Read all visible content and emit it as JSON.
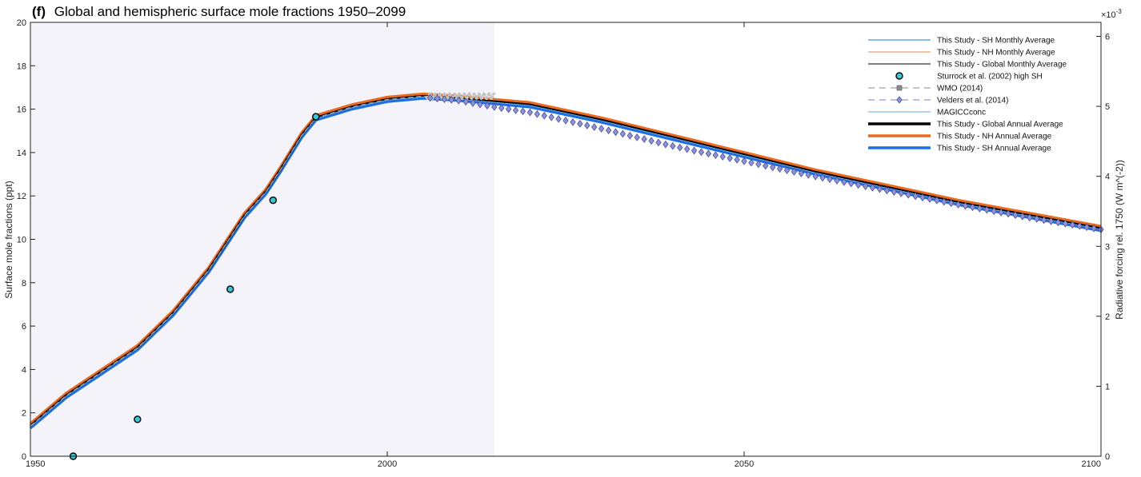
{
  "chart_data": {
    "type": "line",
    "title": "Global and hemispheric surface mole fractions 1950–2099",
    "panel_label": "(f)",
    "xlabel": "",
    "ylabel": "Surface mole fractions (ppt)",
    "ylabel_right": "Radiative forcing rel. 1750 (W m^(-2))",
    "right_axis_multiplier": "×10",
    "right_axis_exponent": "-3",
    "xlim": [
      1950,
      2100
    ],
    "ylim": [
      0,
      20
    ],
    "ylim_right": [
      0,
      0.0062
    ],
    "x_ticks": [
      "1950",
      "2000",
      "2050",
      "2100"
    ],
    "y_ticks": [
      "0",
      "2",
      "4",
      "6",
      "8",
      "10",
      "12",
      "14",
      "16",
      "18",
      "20"
    ],
    "y_right_ticks": [
      "0",
      "1",
      "2",
      "3",
      "4",
      "5",
      "6"
    ],
    "shaded_region": {
      "x": [
        1950,
        2015
      ]
    },
    "grid": false,
    "legend_position": "top-right",
    "legend": [
      {
        "label": "This Study - SH Monthly Average",
        "style": "line-thin",
        "color": "#4a8fe0"
      },
      {
        "label": "This Study - NH Monthly Average",
        "style": "line-thin",
        "color": "#e8a070"
      },
      {
        "label": "This Study - Global Monthly Average",
        "style": "line-thin",
        "color": "#333333"
      },
      {
        "label": "Sturrock et al. (2002) high SH",
        "style": "circle",
        "color": "#39c6d6"
      },
      {
        "label": "WMO (2014)",
        "style": "dash-square",
        "color": "#8a8a8a"
      },
      {
        "label": "Velders et al. (2014)",
        "style": "dash-diamond",
        "color": "#7a7fc8"
      },
      {
        "label": "MAGICCconc",
        "style": "line-thin",
        "color": "#7fb6ea"
      },
      {
        "label": "This Study - Global Annual Average",
        "style": "line-thick",
        "color": "#000000"
      },
      {
        "label": "This Study - NH Annual Average",
        "style": "line-thick",
        "color": "#ea6a1e"
      },
      {
        "label": "This Study - SH Annual Average",
        "style": "line-thick",
        "color": "#1a6fe8"
      }
    ],
    "series": [
      {
        "name": "This Study - Global Annual Average",
        "x": [
          1950,
          1955,
          1960,
          1965,
          1970,
          1975,
          1980,
          1983,
          1985,
          1988,
          1990,
          1993,
          1995,
          2000,
          2005,
          2010,
          2015,
          2020,
          2030,
          2040,
          2050,
          2060,
          2070,
          2080,
          2090,
          2100
        ],
        "y": [
          1.4,
          2.8,
          3.9,
          5.0,
          6.6,
          8.6,
          11.1,
          12.2,
          13.2,
          14.8,
          15.6,
          15.9,
          16.1,
          16.45,
          16.6,
          16.5,
          16.35,
          16.2,
          15.5,
          14.7,
          13.9,
          13.1,
          12.4,
          11.7,
          11.1,
          10.5
        ]
      },
      {
        "name": "Velders et al. (2014)",
        "x": [
          2005,
          2010,
          2015,
          2020,
          2030,
          2040,
          2050,
          2060,
          2070,
          2080,
          2090,
          2100
        ],
        "y": [
          16.55,
          16.4,
          16.1,
          15.85,
          15.1,
          14.3,
          13.6,
          12.9,
          12.25,
          11.6,
          11.0,
          10.45
        ]
      },
      {
        "name": "Sturrock et al. (2002) high SH",
        "x": [
          1956,
          1965,
          1978,
          1984,
          1990
        ],
        "y": [
          0.0,
          1.7,
          7.7,
          11.8,
          15.65
        ]
      }
    ]
  }
}
